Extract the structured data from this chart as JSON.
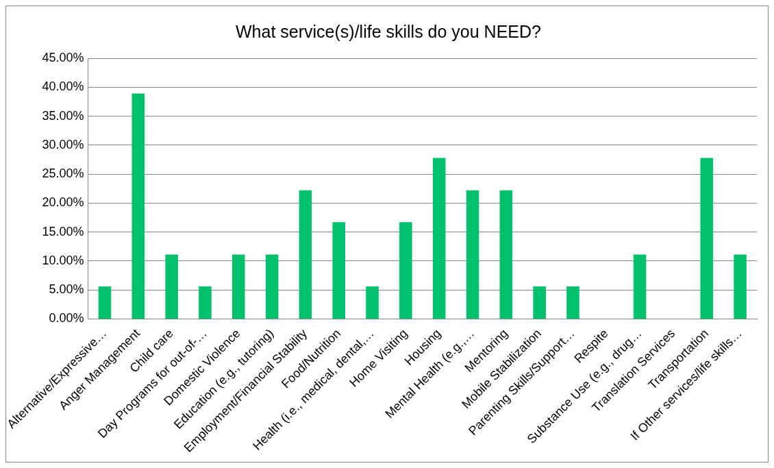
{
  "chart_data": {
    "type": "bar",
    "title": "What service(s)/life skills do you NEED?",
    "categories": [
      "Alternative/Expressive…",
      "Anger Management",
      "Child care",
      "Day Programs for out-of-…",
      "Domestic Violence",
      "Education (e.g., tutoring)",
      "Employment/Financial Stability",
      "Food/Nutrition",
      "Health (i.e., medical, dental,…",
      "Home Visiting",
      "Housing",
      "Mental Health (e.g.,…",
      "Mentoring",
      "Mobile Stabilization",
      "Parenting Skills/Support…",
      "Respite",
      "Substance Use (e.g., drug…",
      "Translation Services",
      "Transportation",
      "If Other services/life skills…"
    ],
    "values": [
      5.6,
      38.9,
      11.1,
      5.6,
      11.1,
      11.1,
      22.2,
      16.7,
      5.6,
      16.7,
      27.8,
      22.2,
      22.2,
      5.6,
      5.6,
      0,
      11.1,
      0,
      27.8,
      11.1
    ],
    "color": "#00c06b",
    "ylim": [
      0,
      45
    ],
    "yticks": [
      {
        "value": 0,
        "label": "0.00%"
      },
      {
        "value": 5,
        "label": "5.00%"
      },
      {
        "value": 10,
        "label": "10.00%"
      },
      {
        "value": 15,
        "label": "15.00%"
      },
      {
        "value": 20,
        "label": "20.00%"
      },
      {
        "value": 25,
        "label": "25.00%"
      },
      {
        "value": 30,
        "label": "30.00%"
      },
      {
        "value": 35,
        "label": "35.00%"
      },
      {
        "value": 40,
        "label": "40.00%"
      },
      {
        "value": 45,
        "label": "45.00%"
      }
    ],
    "grid": "y",
    "legend": false
  }
}
